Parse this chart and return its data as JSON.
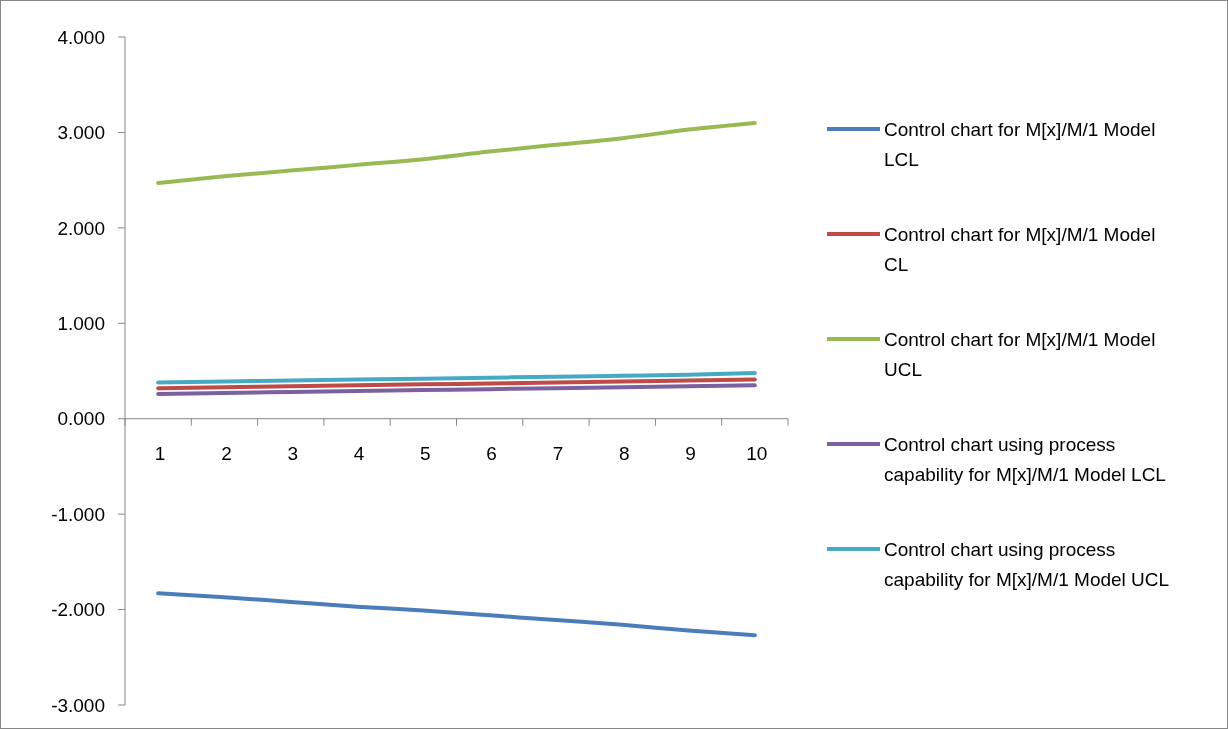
{
  "chart_data": {
    "type": "line",
    "categories": [
      "1",
      "2",
      "3",
      "4",
      "5",
      "6",
      "7",
      "8",
      "9",
      "10"
    ],
    "ylim": [
      -3,
      4
    ],
    "yticks": [
      {
        "value": -3,
        "label": "-3.000"
      },
      {
        "value": -2,
        "label": "-2.000"
      },
      {
        "value": -1,
        "label": "-1.000"
      },
      {
        "value": 0,
        "label": "0.000"
      },
      {
        "value": 1,
        "label": "1.000"
      },
      {
        "value": 2,
        "label": "2.000"
      },
      {
        "value": 3,
        "label": "3.000"
      },
      {
        "value": 4,
        "label": "4.000"
      }
    ],
    "legend": "right",
    "grid": false,
    "marker": "none",
    "line_style": "solid",
    "series": [
      {
        "name": "Control chart for M[x]/M/1 Model LCL",
        "color": "#4a7ebb",
        "values": [
          -1.83,
          -1.87,
          -1.92,
          -1.97,
          -2.01,
          -2.06,
          -2.11,
          -2.16,
          -2.22,
          -2.27
        ]
      },
      {
        "name": "Control chart for M[x]/M/1 Model CL",
        "color": "#be4b48",
        "values": [
          0.32,
          0.33,
          0.34,
          0.35,
          0.36,
          0.37,
          0.38,
          0.39,
          0.4,
          0.41
        ]
      },
      {
        "name": "Control chart for M[x]/M/1 Model UCL",
        "color": "#98b954",
        "values": [
          2.47,
          2.54,
          2.6,
          2.66,
          2.72,
          2.8,
          2.87,
          2.94,
          3.03,
          3.1
        ]
      },
      {
        "name": "Control chart using process capability for M[x]/M/1 Model LCL",
        "color": "#7d60a0",
        "values": [
          0.26,
          0.27,
          0.28,
          0.29,
          0.3,
          0.31,
          0.32,
          0.33,
          0.34,
          0.35
        ]
      },
      {
        "name": "Control chart using process capability for M[x]/M/1 Model UCL",
        "color": "#46aac5",
        "values": [
          0.38,
          0.39,
          0.4,
          0.41,
          0.42,
          0.43,
          0.44,
          0.45,
          0.46,
          0.48
        ]
      }
    ]
  }
}
